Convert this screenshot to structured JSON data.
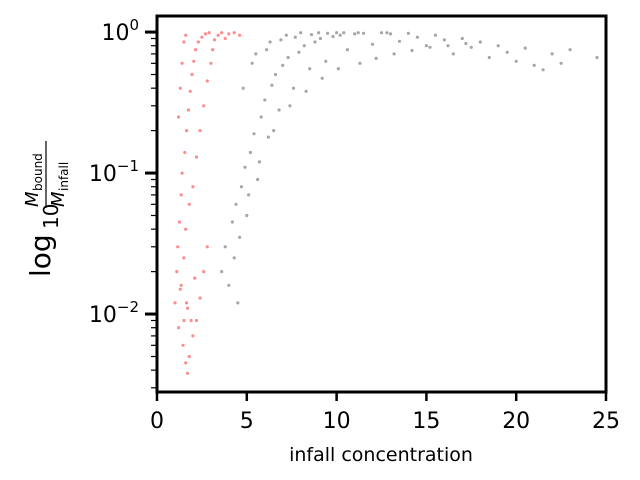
{
  "chart_data": {
    "type": "scatter",
    "xlabel": "infall concentration",
    "ylabel": {
      "prefix": "log",
      "subscript": "10",
      "numerator": "M",
      "numerator_sub": "bound",
      "denominator": "M",
      "denominator_sub": "infall"
    },
    "xlim": [
      0,
      25
    ],
    "ylim": [
      0.0028,
      1.3
    ],
    "yscale": "log",
    "grid": false,
    "xticks": [
      {
        "value": 0,
        "label": "0"
      },
      {
        "value": 5,
        "label": "5"
      },
      {
        "value": 10,
        "label": "10"
      },
      {
        "value": 15,
        "label": "15"
      },
      {
        "value": 20,
        "label": "20"
      },
      {
        "value": 25,
        "label": "25"
      }
    ],
    "yticks": [
      {
        "value": 0.01,
        "base": "10",
        "exp": "−2"
      },
      {
        "value": 0.1,
        "base": "10",
        "exp": "−1"
      },
      {
        "value": 1,
        "base": "10",
        "exp": "0"
      }
    ],
    "series": [
      {
        "color": "#000000",
        "opacity": 0.35,
        "points": [
          [
            3.6,
            0.02
          ],
          [
            3.8,
            0.03
          ],
          [
            4.0,
            0.016
          ],
          [
            4.2,
            0.045
          ],
          [
            4.4,
            0.06
          ],
          [
            4.5,
            0.012
          ],
          [
            4.7,
            0.08
          ],
          [
            4.9,
            0.11
          ],
          [
            5.0,
            0.05
          ],
          [
            5.2,
            0.14
          ],
          [
            5.4,
            0.19
          ],
          [
            5.6,
            0.09
          ],
          [
            5.8,
            0.25
          ],
          [
            6.0,
            0.33
          ],
          [
            6.2,
            0.18
          ],
          [
            6.4,
            0.42
          ],
          [
            6.6,
            0.5
          ],
          [
            6.8,
            0.28
          ],
          [
            7.0,
            0.58
          ],
          [
            7.3,
            0.66
          ],
          [
            7.6,
            0.4
          ],
          [
            7.9,
            0.72
          ],
          [
            8.2,
            0.8
          ],
          [
            8.5,
            0.55
          ],
          [
            8.8,
            0.85
          ],
          [
            9.1,
            0.9
          ],
          [
            9.4,
            0.62
          ],
          [
            9.8,
            0.93
          ],
          [
            10.2,
            0.95
          ],
          [
            10.6,
            0.75
          ],
          [
            11.0,
            0.97
          ],
          [
            11.5,
            0.98
          ],
          [
            12.0,
            0.82
          ],
          [
            12.5,
            0.99
          ],
          [
            13.0,
            0.97
          ],
          [
            13.5,
            0.86
          ],
          [
            14.0,
            0.98
          ],
          [
            14.5,
            0.92
          ],
          [
            15.0,
            0.8
          ],
          [
            15.5,
            0.95
          ],
          [
            16.0,
            0.88
          ],
          [
            16.5,
            0.7
          ],
          [
            17.0,
            0.9
          ],
          [
            17.5,
            0.78
          ],
          [
            18.0,
            0.85
          ],
          [
            18.5,
            0.66
          ],
          [
            19.0,
            0.8
          ],
          [
            19.5,
            0.72
          ],
          [
            20.0,
            0.62
          ],
          [
            20.5,
            0.77
          ],
          [
            21.0,
            0.58
          ],
          [
            21.5,
            0.54
          ],
          [
            22.0,
            0.7
          ],
          [
            22.5,
            0.6
          ],
          [
            23.0,
            0.75
          ],
          [
            24.5,
            0.66
          ],
          [
            5.5,
            0.7
          ],
          [
            6.3,
            0.85
          ],
          [
            7.2,
            0.95
          ],
          [
            8.0,
            0.99
          ],
          [
            9.0,
            0.99
          ],
          [
            10.0,
            0.99
          ],
          [
            11.2,
            0.99
          ],
          [
            12.8,
            0.99
          ],
          [
            4.8,
            0.4
          ],
          [
            5.3,
            0.6
          ],
          [
            6.1,
            0.75
          ],
          [
            6.9,
            0.88
          ],
          [
            7.7,
            0.92
          ],
          [
            8.6,
            0.96
          ],
          [
            9.5,
            0.98
          ],
          [
            10.4,
            0.99
          ],
          [
            4.3,
            0.025
          ],
          [
            4.6,
            0.035
          ],
          [
            5.1,
            0.07
          ],
          [
            5.7,
            0.12
          ],
          [
            6.5,
            0.2
          ],
          [
            7.4,
            0.3
          ],
          [
            8.3,
            0.38
          ],
          [
            9.2,
            0.47
          ],
          [
            10.1,
            0.55
          ],
          [
            11.3,
            0.6
          ],
          [
            12.2,
            0.65
          ],
          [
            13.2,
            0.7
          ],
          [
            14.2,
            0.74
          ],
          [
            15.2,
            0.78
          ],
          [
            16.2,
            0.8
          ],
          [
            17.2,
            0.83
          ]
        ]
      },
      {
        "color": "#ff0000",
        "opacity": 0.45,
        "points": [
          [
            1.0,
            0.012
          ],
          [
            1.1,
            0.02
          ],
          [
            1.15,
            0.03
          ],
          [
            1.2,
            0.008
          ],
          [
            1.25,
            0.045
          ],
          [
            1.3,
            0.015
          ],
          [
            1.35,
            0.07
          ],
          [
            1.4,
            0.1
          ],
          [
            1.45,
            0.006
          ],
          [
            1.5,
            0.025
          ],
          [
            1.55,
            0.14
          ],
          [
            1.6,
            0.04
          ],
          [
            1.65,
            0.2
          ],
          [
            1.7,
            0.011
          ],
          [
            1.75,
            0.28
          ],
          [
            1.8,
            0.06
          ],
          [
            1.85,
            0.38
          ],
          [
            1.9,
            0.009
          ],
          [
            1.95,
            0.5
          ],
          [
            2.0,
            0.08
          ],
          [
            2.05,
            0.62
          ],
          [
            2.1,
            0.018
          ],
          [
            2.15,
            0.75
          ],
          [
            2.2,
            0.13
          ],
          [
            2.3,
            0.85
          ],
          [
            2.4,
            0.2
          ],
          [
            2.5,
            0.92
          ],
          [
            2.6,
            0.3
          ],
          [
            2.7,
            0.97
          ],
          [
            2.8,
            0.45
          ],
          [
            2.9,
            0.99
          ],
          [
            3.0,
            0.6
          ],
          [
            3.1,
            0.75
          ],
          [
            3.2,
            0.88
          ],
          [
            3.4,
            0.95
          ],
          [
            3.6,
            0.99
          ],
          [
            3.8,
            0.9
          ],
          [
            4.0,
            0.97
          ],
          [
            4.3,
            0.99
          ],
          [
            4.6,
            0.95
          ],
          [
            1.6,
            0.0045
          ],
          [
            1.7,
            0.0038
          ],
          [
            1.8,
            0.005
          ],
          [
            2.0,
            0.007
          ],
          [
            2.2,
            0.009
          ],
          [
            2.4,
            0.013
          ],
          [
            2.6,
            0.02
          ],
          [
            2.8,
            0.03
          ],
          [
            1.2,
            0.25
          ],
          [
            1.3,
            0.4
          ],
          [
            1.4,
            0.6
          ],
          [
            1.5,
            0.85
          ],
          [
            1.6,
            0.95
          ],
          [
            1.35,
            0.016
          ],
          [
            1.5,
            0.009
          ],
          [
            1.65,
            0.012
          ]
        ]
      }
    ]
  }
}
